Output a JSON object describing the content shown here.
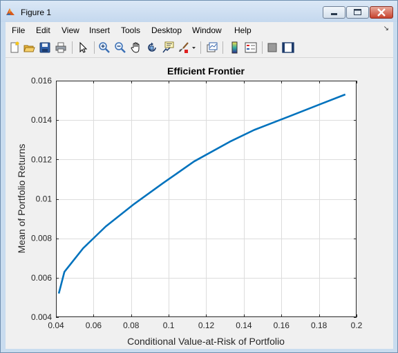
{
  "window": {
    "title": "Figure 1",
    "icons": {
      "app": "matlab-icon",
      "minimize": "minimize-icon",
      "maximize": "maximize-icon",
      "close": "close-icon"
    }
  },
  "menu": {
    "items": [
      "File",
      "Edit",
      "View",
      "Insert",
      "Tools",
      "Desktop",
      "Window",
      "Help"
    ],
    "overflow_icon": "menu-overflow-icon"
  },
  "toolbar": {
    "buttons": [
      "new-figure-icon",
      "open-file-icon",
      "save-icon",
      "print-icon",
      "pointer-icon",
      "zoom-in-icon",
      "zoom-out-icon",
      "pan-icon",
      "rotate-3d-icon",
      "data-cursor-icon",
      "brush-icon",
      "link-plot-icon",
      "colorbar-icon",
      "legend-icon",
      "hide-plot-tools-icon",
      "show-plot-tools-icon"
    ]
  },
  "colors": {
    "line": "#0072bd",
    "grid": "#dcdcdc",
    "axes_bg": "#ffffff",
    "figure_bg": "#f0f0f0"
  },
  "chart_data": {
    "type": "line",
    "title": "Efficient Frontier",
    "xlabel": "Conditional Value-at-Risk of Portfolio",
    "ylabel": "Mean of Portfolio Returns",
    "xlim": [
      0.04,
      0.2
    ],
    "ylim": [
      0.004,
      0.016
    ],
    "grid": true,
    "xticks": [
      0.04,
      0.06,
      0.08,
      0.1,
      0.12,
      0.14,
      0.16,
      0.18,
      0.2
    ],
    "xtick_labels": [
      "0.04",
      "0.06",
      "0.08",
      "0.1",
      "0.12",
      "0.14",
      "0.16",
      "0.18",
      "0.2"
    ],
    "yticks": [
      0.004,
      0.006,
      0.008,
      0.01,
      0.012,
      0.014,
      0.016
    ],
    "ytick_labels": [
      "0.004",
      "0.006",
      "0.008",
      "0.01",
      "0.012",
      "0.014",
      "0.016"
    ],
    "series": [
      {
        "name": "Efficient Frontier",
        "x": [
          0.0415,
          0.0445,
          0.0545,
          0.0665,
          0.081,
          0.097,
          0.1135,
          0.1325,
          0.1455,
          0.1645,
          0.1805,
          0.194
        ],
        "y": [
          0.0052,
          0.0063,
          0.0075,
          0.0086,
          0.0097,
          0.0108,
          0.0119,
          0.0129,
          0.0135,
          0.0142,
          0.0148,
          0.0153
        ]
      }
    ]
  }
}
